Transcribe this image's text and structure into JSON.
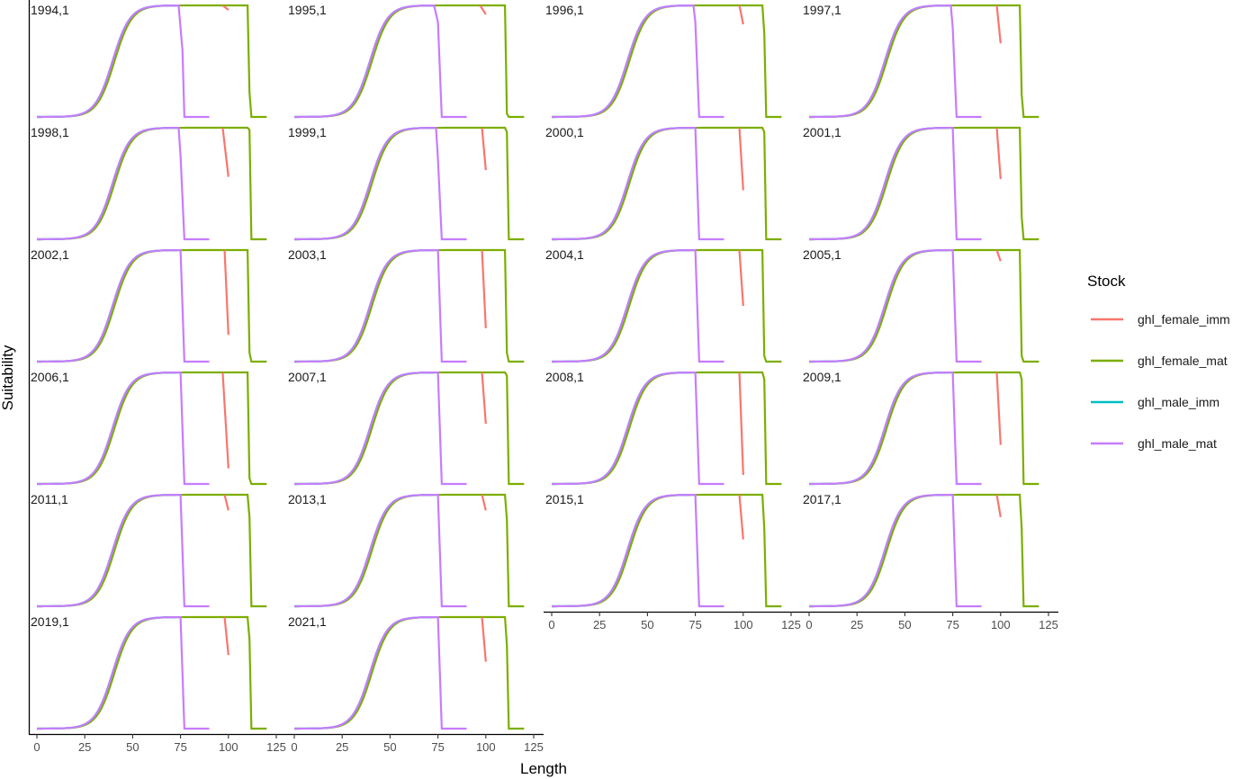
{
  "chart_data": {
    "type": "line",
    "xlabel": "Length",
    "ylabel": "Suitability",
    "xlim": [
      0,
      125
    ],
    "ylim": [
      0,
      1
    ],
    "x_ticks": [
      0,
      25,
      50,
      75,
      100,
      125
    ],
    "grid": false,
    "legend": {
      "title": "Stock",
      "position": "right",
      "entries": [
        {
          "name": "ghl_female_imm",
          "color": "#F8766D"
        },
        {
          "name": "ghl_female_mat",
          "color": "#7CAE00"
        },
        {
          "name": "ghl_male_imm",
          "color": "#00BFC4"
        },
        {
          "name": "ghl_male_mat",
          "color": "#C77CFF"
        }
      ]
    },
    "selectivity_curve": {
      "description_x": [
        0,
        10,
        20,
        25,
        30,
        35,
        40,
        45,
        50,
        55,
        60,
        65,
        70,
        75
      ],
      "y": [
        0,
        0,
        0.003,
        0.02,
        0.08,
        0.3,
        0.63,
        0.87,
        0.96,
        0.99,
        1.0,
        1.0,
        1.0,
        1.0
      ]
    },
    "panels": [
      {
        "label": "1994,1",
        "male_mat_end": 77,
        "male_mat_drop": [
          [
            74,
            0.97
          ],
          [
            76,
            0.6
          ],
          [
            77,
            0
          ]
        ],
        "female_imm": [
          [
            97,
            1.0
          ],
          [
            100,
            0.96
          ]
        ],
        "female_mat_drop": [
          [
            110,
            1.0
          ],
          [
            111,
            0.22
          ],
          [
            112,
            0
          ]
        ]
      },
      {
        "label": "1995,1",
        "male_mat_end": 77,
        "male_mat_drop": [
          [
            73,
            0.97
          ],
          [
            75,
            0.85
          ],
          [
            77,
            0
          ]
        ],
        "female_imm": [
          [
            97,
            1.0
          ],
          [
            100,
            0.92
          ]
        ],
        "female_mat_drop": [
          [
            110,
            1.0
          ],
          [
            111,
            0.03
          ],
          [
            112,
            0
          ]
        ]
      },
      {
        "label": "1996,1",
        "male_mat_end": 77,
        "male_mat_drop": [
          [
            74,
            0.96
          ],
          [
            75,
            0.85
          ],
          [
            77,
            0
          ]
        ],
        "female_imm": [
          [
            98,
            1.0
          ],
          [
            100,
            0.83
          ]
        ],
        "female_mat_drop": [
          [
            110,
            1.0
          ],
          [
            111,
            0.75
          ],
          [
            112,
            0
          ]
        ]
      },
      {
        "label": "1997,1",
        "male_mat_end": 77,
        "male_mat_drop": [
          [
            74,
            0.95
          ],
          [
            75,
            0.8
          ],
          [
            77,
            0
          ]
        ],
        "female_imm": [
          [
            98,
            1.0
          ],
          [
            100,
            0.66
          ]
        ],
        "female_mat_drop": [
          [
            110,
            1.0
          ],
          [
            111,
            0.2
          ],
          [
            112,
            0
          ]
        ]
      },
      {
        "label": "1998,1",
        "male_mat_end": 77,
        "male_mat_drop": [
          [
            74,
            0.93
          ],
          [
            75,
            0.75
          ],
          [
            77,
            0
          ]
        ],
        "female_imm": [
          [
            97,
            1.0
          ],
          [
            100,
            0.56
          ]
        ],
        "female_mat_drop": [
          [
            110,
            1.0
          ],
          [
            111,
            0.98
          ],
          [
            112,
            0
          ]
        ]
      },
      {
        "label": "1999,1",
        "male_mat_end": 77,
        "male_mat_drop": [
          [
            74,
            0.93
          ],
          [
            75,
            0.72
          ],
          [
            77,
            0
          ]
        ],
        "female_imm": [
          [
            98,
            1.0
          ],
          [
            100,
            0.62
          ]
        ],
        "female_mat_drop": [
          [
            110,
            1.0
          ],
          [
            111,
            0.96
          ],
          [
            112,
            0
          ]
        ]
      },
      {
        "label": "2000,1",
        "male_mat_end": 77,
        "male_mat_drop": [
          [
            75,
            0.97
          ],
          [
            77,
            0
          ]
        ],
        "female_imm": [
          [
            98,
            1.0
          ],
          [
            100,
            0.44
          ]
        ],
        "female_mat_drop": [
          [
            110,
            1.0
          ],
          [
            111,
            0.96
          ],
          [
            112,
            0
          ]
        ]
      },
      {
        "label": "2001,1",
        "male_mat_end": 77,
        "male_mat_drop": [
          [
            75,
            0.97
          ],
          [
            77,
            0
          ]
        ],
        "female_imm": [
          [
            98,
            1.0
          ],
          [
            100,
            0.54
          ]
        ],
        "female_mat_drop": [
          [
            110,
            1.0
          ],
          [
            111,
            0.2
          ],
          [
            112,
            0
          ]
        ]
      },
      {
        "label": "2002,1",
        "male_mat_end": 77,
        "male_mat_drop": [
          [
            75,
            0.97
          ],
          [
            77,
            0
          ]
        ],
        "female_imm": [
          [
            98,
            1.0
          ],
          [
            100,
            0.24
          ]
        ],
        "female_mat_drop": [
          [
            110,
            1.0
          ],
          [
            111,
            0.08
          ],
          [
            112,
            0
          ]
        ]
      },
      {
        "label": "2003,1",
        "male_mat_end": 77,
        "male_mat_drop": [
          [
            75,
            0.97
          ],
          [
            77,
            0
          ]
        ],
        "female_imm": [
          [
            98,
            1.0
          ],
          [
            100,
            0.3
          ]
        ],
        "female_mat_drop": [
          [
            110,
            1.0
          ],
          [
            111,
            0.08
          ],
          [
            112,
            0
          ]
        ]
      },
      {
        "label": "2004,1",
        "male_mat_end": 77,
        "male_mat_drop": [
          [
            75,
            0.97
          ],
          [
            77,
            0
          ]
        ],
        "female_imm": [
          [
            98,
            1.0
          ],
          [
            100,
            0.5
          ]
        ],
        "female_mat_drop": [
          [
            110,
            1.0
          ],
          [
            111,
            0.05
          ],
          [
            112,
            0
          ]
        ]
      },
      {
        "label": "2005,1",
        "male_mat_end": 77,
        "male_mat_drop": [
          [
            75,
            0.97
          ],
          [
            77,
            0
          ]
        ],
        "female_imm": [
          [
            98,
            1.0
          ],
          [
            100,
            0.9
          ]
        ],
        "female_mat_drop": [
          [
            110,
            1.0
          ],
          [
            111,
            0.05
          ],
          [
            112,
            0
          ]
        ]
      },
      {
        "label": "2006,1",
        "male_mat_end": 77,
        "male_mat_drop": [
          [
            75,
            0.97
          ],
          [
            77,
            0
          ]
        ],
        "female_imm": [
          [
            97,
            1.0
          ],
          [
            100,
            0.14
          ]
        ],
        "female_mat_drop": [
          [
            110,
            1.0
          ],
          [
            111,
            0.05
          ],
          [
            112,
            0
          ]
        ]
      },
      {
        "label": "2007,1",
        "male_mat_end": 77,
        "male_mat_drop": [
          [
            75,
            0.97
          ],
          [
            77,
            0
          ]
        ],
        "female_imm": [
          [
            98,
            1.0
          ],
          [
            100,
            0.54
          ]
        ],
        "female_mat_drop": [
          [
            110,
            1.0
          ],
          [
            111,
            0.97
          ],
          [
            112,
            0
          ]
        ]
      },
      {
        "label": "2008,1",
        "male_mat_end": 77,
        "male_mat_drop": [
          [
            75,
            0.97
          ],
          [
            77,
            0
          ]
        ],
        "female_imm": [
          [
            98,
            1.0
          ],
          [
            100,
            0.08
          ]
        ],
        "female_mat_drop": [
          [
            110,
            1.0
          ],
          [
            111,
            0.94
          ],
          [
            112,
            0
          ]
        ]
      },
      {
        "label": "2009,1",
        "male_mat_end": 77,
        "male_mat_drop": [
          [
            75,
            0.97
          ],
          [
            77,
            0
          ]
        ],
        "female_imm": [
          [
            98,
            1.0
          ],
          [
            100,
            0.35
          ]
        ],
        "female_mat_drop": [
          [
            110,
            1.0
          ],
          [
            111,
            0.94
          ],
          [
            112,
            0
          ]
        ]
      },
      {
        "label": "2011,1",
        "male_mat_end": 77,
        "male_mat_drop": [
          [
            75,
            0.97
          ],
          [
            77,
            0
          ]
        ],
        "female_imm": [
          [
            98,
            1.0
          ],
          [
            100,
            0.86
          ]
        ],
        "female_mat_drop": [
          [
            110,
            1.0
          ],
          [
            111,
            0.8
          ],
          [
            112,
            0
          ]
        ]
      },
      {
        "label": "2013,1",
        "male_mat_end": 77,
        "male_mat_drop": [
          [
            75,
            0.97
          ],
          [
            77,
            0
          ]
        ],
        "female_imm": [
          [
            98,
            1.0
          ],
          [
            100,
            0.86
          ]
        ],
        "female_mat_drop": [
          [
            110,
            1.0
          ],
          [
            111,
            0.78
          ],
          [
            112,
            0
          ]
        ]
      },
      {
        "label": "2015,1",
        "male_mat_end": 77,
        "male_mat_drop": [
          [
            75,
            0.97
          ],
          [
            77,
            0
          ]
        ],
        "female_imm": [
          [
            98,
            1.0
          ],
          [
            100,
            0.6
          ]
        ],
        "female_mat_drop": [
          [
            110,
            1.0
          ],
          [
            111,
            0.7
          ],
          [
            112,
            0
          ]
        ]
      },
      {
        "label": "2017,1",
        "male_mat_end": 77,
        "male_mat_drop": [
          [
            75,
            0.97
          ],
          [
            77,
            0
          ]
        ],
        "female_imm": [
          [
            98,
            1.0
          ],
          [
            100,
            0.8
          ]
        ],
        "female_mat_drop": [
          [
            110,
            1.0
          ],
          [
            111,
            0.7
          ],
          [
            112,
            0
          ]
        ]
      },
      {
        "label": "2019,1",
        "male_mat_end": 77,
        "male_mat_drop": [
          [
            75,
            0.97
          ],
          [
            77,
            0
          ]
        ],
        "female_imm": [
          [
            98,
            1.0
          ],
          [
            100,
            0.66
          ]
        ],
        "female_mat_drop": [
          [
            110,
            1.0
          ],
          [
            111,
            0.8
          ],
          [
            112,
            0
          ]
        ]
      },
      {
        "label": "2021,1",
        "male_mat_end": 77,
        "male_mat_drop": [
          [
            75,
            0.97
          ],
          [
            77,
            0
          ]
        ],
        "female_imm": [
          [
            98,
            1.0
          ],
          [
            100,
            0.6
          ]
        ],
        "female_mat_drop": [
          [
            110,
            1.0
          ],
          [
            111,
            0.75
          ],
          [
            112,
            0
          ]
        ]
      }
    ]
  }
}
